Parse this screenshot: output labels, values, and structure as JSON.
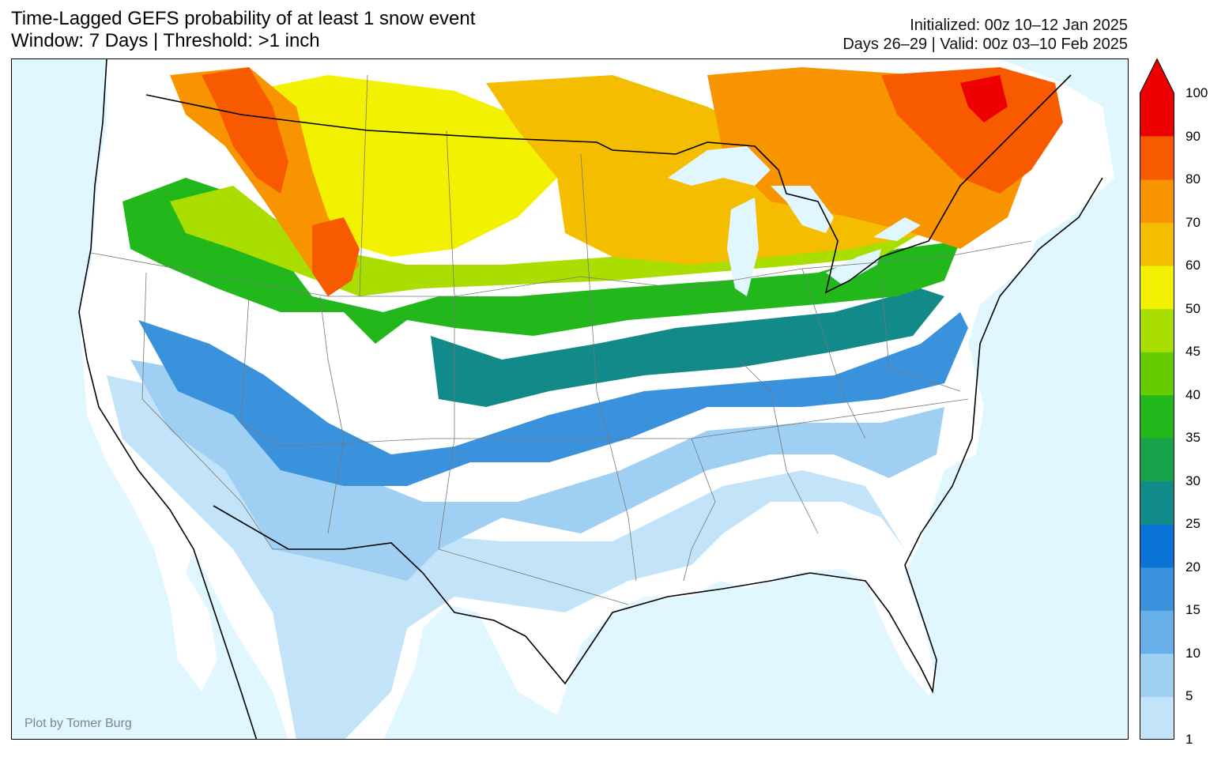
{
  "header": {
    "title_line1": "Time-Lagged GEFS probability of at least 1 snow event",
    "title_line2": "Window: 7 Days | Threshold: >1 inch",
    "initialized": "Initialized: 00z 10–12 Jan 2025",
    "valid": "Days 26–29 | Valid: 00z 03–10 Feb 2025"
  },
  "credit": "Plot by Tomer Burg",
  "colorbar": {
    "levels": [
      "1",
      "5",
      "10",
      "15",
      "20",
      "25",
      "30",
      "35",
      "40",
      "45",
      "50",
      "60",
      "70",
      "80",
      "90",
      "100"
    ],
    "colors": [
      "#c3e4f8",
      "#9fcff2",
      "#67b0ea",
      "#3a92dc",
      "#0b74d6",
      "#138a8a",
      "#16a34a",
      "#22b81c",
      "#66cc00",
      "#aadd00",
      "#f2f200",
      "#f5bd00",
      "#f79400",
      "#f85a00",
      "#ec0000"
    ],
    "extend": "max"
  },
  "colors": {
    "water": "#e0f7ff",
    "land_below": "#ffffff",
    "border": "#000000",
    "state_lines": "#777777"
  }
}
